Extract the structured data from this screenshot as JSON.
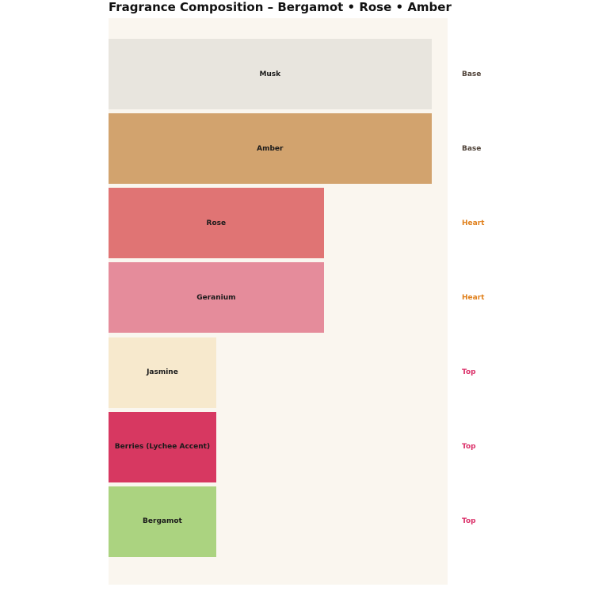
{
  "page": {
    "background": "#ffffff",
    "plot_background": "#faf6ef"
  },
  "chart_data": {
    "type": "bar",
    "orientation": "horizontal",
    "title": "Fragrance Composition – Bergamot • Rose • Amber",
    "xlabel": "",
    "ylabel": "",
    "xlim": [
      0,
      31.5
    ],
    "grid": false,
    "legend": false,
    "axes_visible": false,
    "categories": [
      "Musk",
      "Amber",
      "Rose",
      "Geranium",
      "Jasmine",
      "Berries (Lychee Accent)",
      "Bergamot"
    ],
    "values": [
      30,
      30,
      20,
      20,
      10,
      10,
      10
    ],
    "bar_colors": [
      "#e8e5de",
      "#d2a36e",
      "#e07474",
      "#e58c9b",
      "#f7e9cd",
      "#d73861",
      "#abd380"
    ],
    "bar_label_color": "#1a1a1a",
    "note_labels": [
      "Base",
      "Base",
      "Heart",
      "Heart",
      "Top",
      "Top",
      "Top"
    ],
    "note_colors": {
      "Base": "#4f4238",
      "Heart": "#e0801c",
      "Top": "#db3069"
    }
  }
}
